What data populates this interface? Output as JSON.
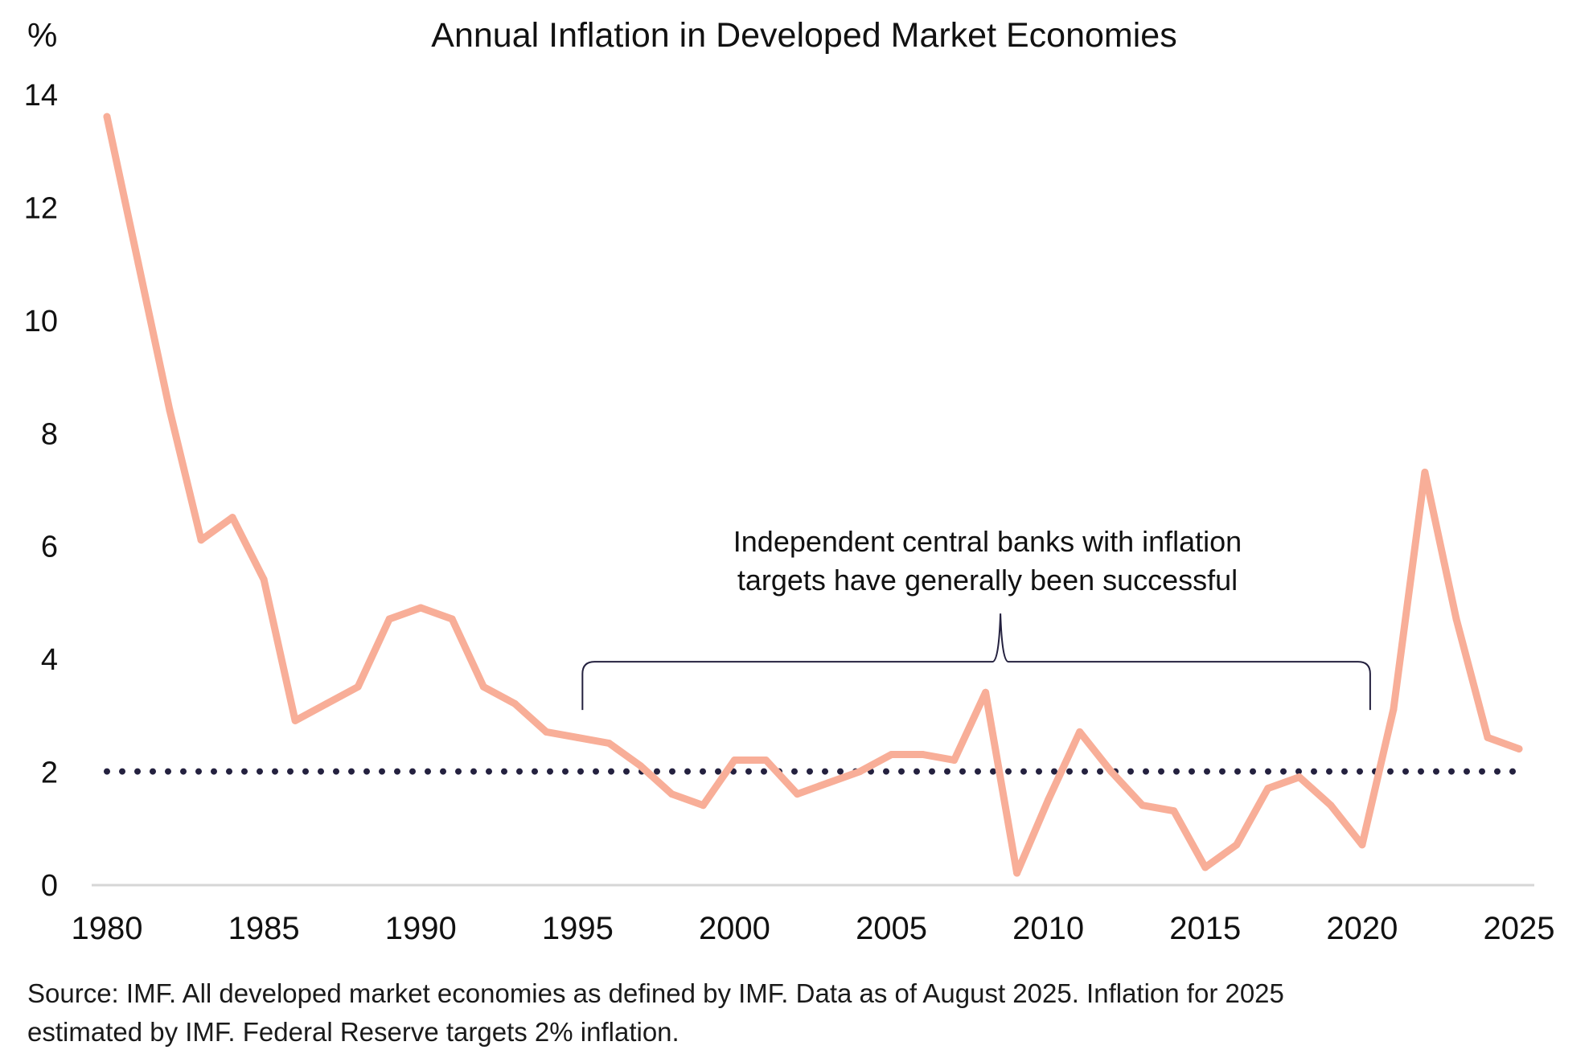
{
  "chart_data": {
    "type": "line",
    "title": "Annual Inflation in Developed Market Economies",
    "ylabel": "%",
    "xlabel": "",
    "ylim": [
      0,
      14
    ],
    "xlim": [
      1980,
      2025
    ],
    "yticks": [
      0,
      2,
      4,
      6,
      8,
      10,
      12,
      14
    ],
    "xticks": [
      1980,
      1985,
      1990,
      1995,
      2000,
      2005,
      2010,
      2015,
      2020,
      2025
    ],
    "grid": false,
    "legend": "none",
    "series": [
      {
        "name": "Annual inflation (developed market economies)",
        "color": "#F8AE98",
        "x": [
          1980,
          1981,
          1982,
          1983,
          1984,
          1985,
          1986,
          1987,
          1988,
          1989,
          1990,
          1991,
          1992,
          1993,
          1994,
          1995,
          1996,
          1997,
          1998,
          1999,
          2000,
          2001,
          2002,
          2003,
          2004,
          2005,
          2006,
          2007,
          2008,
          2009,
          2010,
          2011,
          2012,
          2013,
          2014,
          2015,
          2016,
          2017,
          2018,
          2019,
          2020,
          2021,
          2022,
          2023,
          2024,
          2025
        ],
        "values": [
          13.6,
          11.0,
          8.4,
          6.1,
          6.5,
          5.4,
          2.9,
          3.2,
          3.5,
          4.7,
          4.9,
          4.7,
          3.5,
          3.2,
          2.7,
          2.6,
          2.5,
          2.1,
          1.6,
          1.4,
          2.2,
          2.2,
          1.6,
          1.8,
          2.0,
          2.3,
          2.3,
          2.2,
          3.4,
          0.2,
          1.5,
          2.7,
          2.0,
          1.4,
          1.3,
          0.3,
          0.7,
          1.7,
          1.9,
          1.4,
          0.7,
          3.1,
          7.3,
          4.7,
          2.6,
          2.4
        ]
      }
    ],
    "reference_line": {
      "name": "Federal Reserve 2% target",
      "value": 2,
      "style": "dotted",
      "color": "#24213F"
    },
    "annotation": {
      "lines": [
        "Independent central banks with inflation",
        "targets have generally been successful"
      ],
      "bracket_from": 1995,
      "bracket_to": 2020,
      "bracket_level": 4.0,
      "color": "#24213F"
    }
  },
  "footer": {
    "line1": "Source: IMF. All developed market economies as defined by IMF. Data as of August 2025. Inflation for 2025",
    "line2": "estimated by IMF. Federal Reserve targets 2% inflation."
  }
}
